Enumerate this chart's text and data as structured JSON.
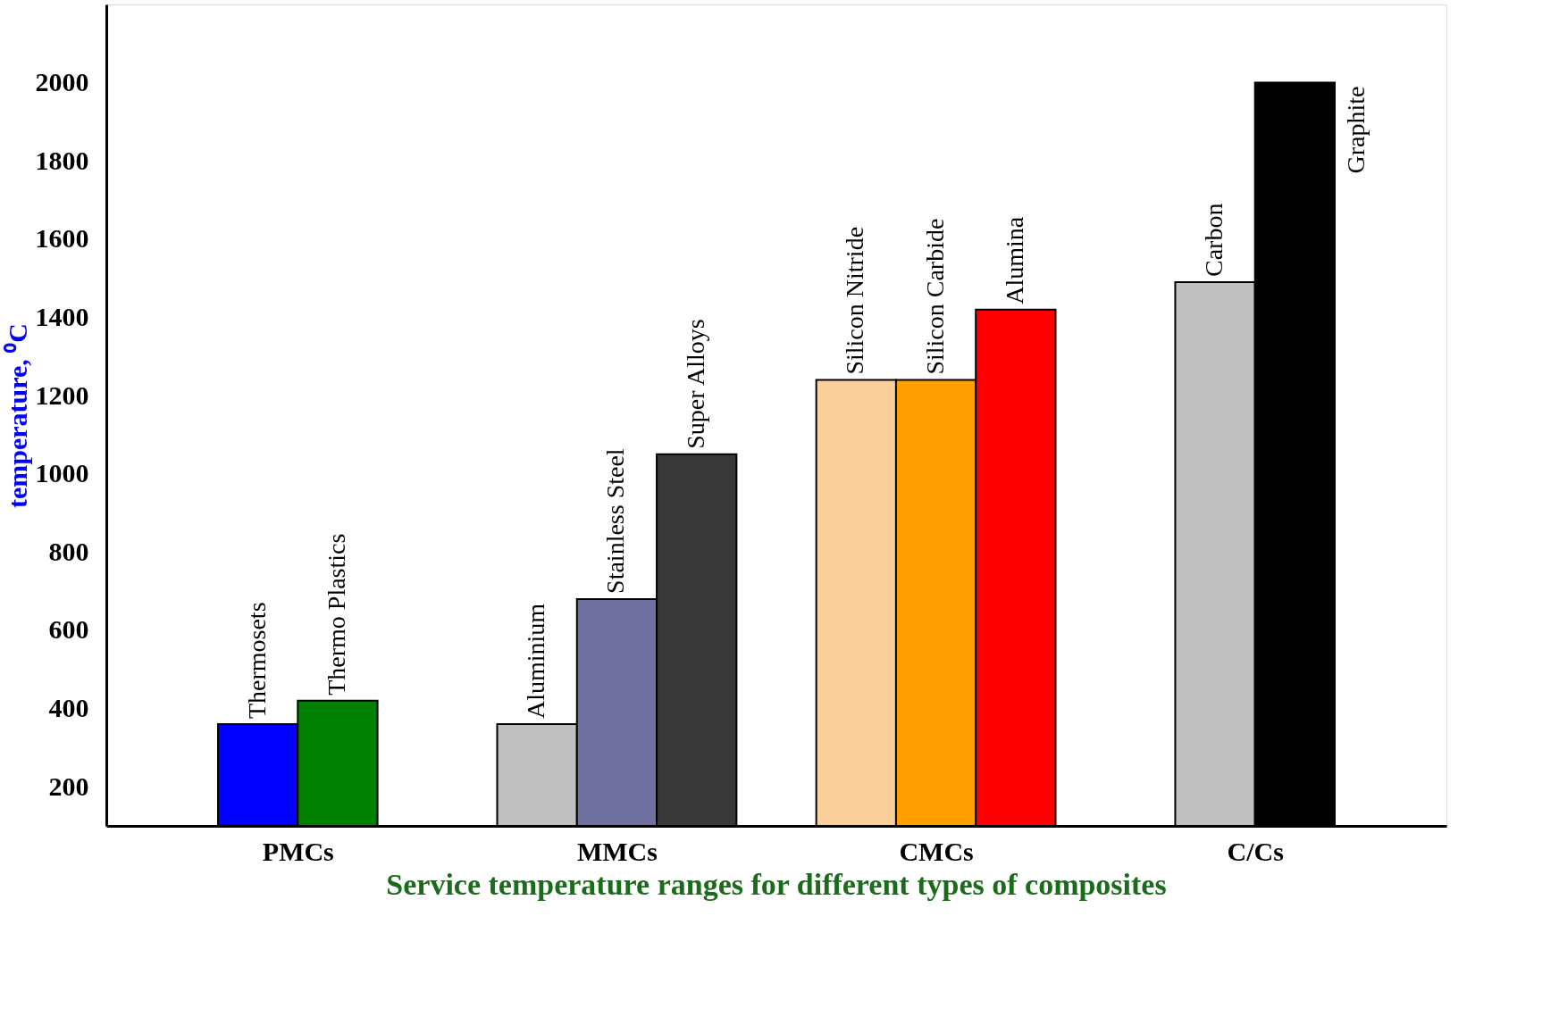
{
  "chart_data": {
    "type": "bar",
    "title": "Service temperature ranges for different types of composites",
    "ylabel": "temperature, ⁰C",
    "categories": [
      "PMCs",
      "MMCs",
      "CMCs",
      "C/Cs"
    ],
    "series": [
      {
        "values": [
          360,
          360,
          1240,
          1490
        ],
        "colors": [
          "#0000ff",
          "#c0c0c0",
          "#fbcf9a",
          "#c0c0c0"
        ],
        "value_labels": [
          "Thermosets",
          "Aluminium",
          "Silicon Nitride",
          "Carbon"
        ]
      },
      {
        "values": [
          420,
          680,
          1240,
          2000
        ],
        "colors": [
          "#008000",
          "#7070a0",
          "#ffa000",
          "#000000"
        ],
        "value_labels": [
          "Thermo Plastics",
          "Stainless Steel",
          "Silicon Carbide",
          "Graphite"
        ]
      },
      {
        "values": [
          null,
          1050,
          1420,
          null
        ],
        "colors": [
          null,
          "#383838",
          "#ff0000",
          null
        ],
        "value_labels": [
          null,
          "Super Alloys",
          "Alumina",
          null
        ]
      }
    ],
    "ylim": [
      100,
      2200
    ],
    "yticks": [
      200,
      400,
      600,
      800,
      1000,
      1200,
      1400,
      1600,
      1800,
      2000
    ],
    "grid": false
  }
}
